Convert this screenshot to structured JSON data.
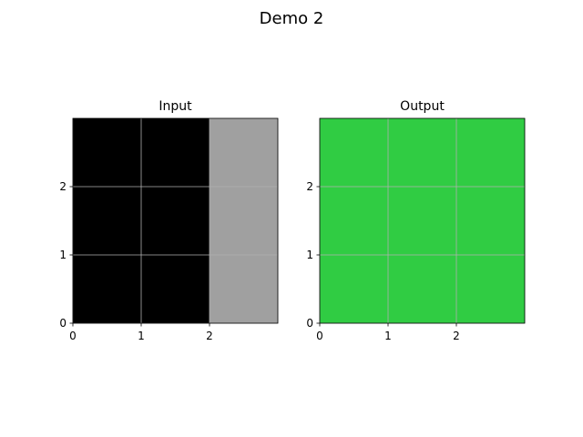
{
  "figure": {
    "title": "Demo 2"
  },
  "colors": {
    "grid": "#b0b0b0",
    "spine": "#000000",
    "black": "#000000",
    "gray": "#a0a0a0",
    "green": "#30cc43"
  },
  "chart_data": [
    {
      "type": "heatmap",
      "title": "Input",
      "xlim": [
        0,
        3
      ],
      "ylim": [
        0,
        3
      ],
      "xticks": [
        0,
        1,
        2
      ],
      "yticks": [
        0,
        1,
        2
      ],
      "grid": true,
      "rows": 3,
      "cols": 3,
      "cells": [
        [
          "#000000",
          "#000000",
          "#a0a0a0"
        ],
        [
          "#000000",
          "#000000",
          "#a0a0a0"
        ],
        [
          "#000000",
          "#000000",
          "#a0a0a0"
        ]
      ]
    },
    {
      "type": "heatmap",
      "title": "Output",
      "xlim": [
        0,
        3
      ],
      "ylim": [
        0,
        3
      ],
      "xticks": [
        0,
        1,
        2
      ],
      "yticks": [
        0,
        1,
        2
      ],
      "grid": true,
      "rows": 3,
      "cols": 3,
      "cells": [
        [
          "#30cc43",
          "#30cc43",
          "#30cc43"
        ],
        [
          "#30cc43",
          "#30cc43",
          "#30cc43"
        ],
        [
          "#30cc43",
          "#30cc43",
          "#30cc43"
        ]
      ]
    }
  ]
}
